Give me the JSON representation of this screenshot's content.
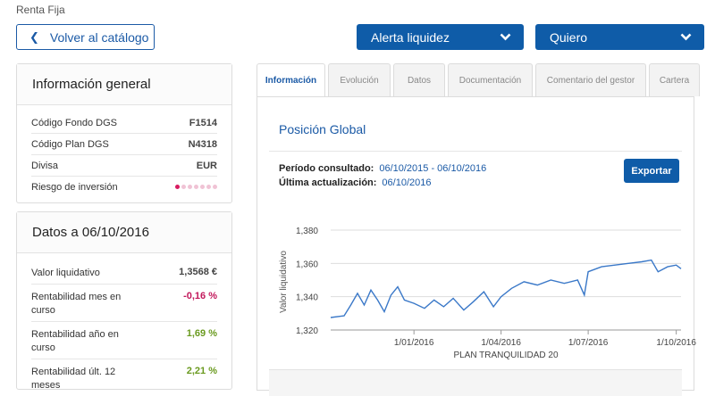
{
  "breadcrumb": "Renta Fija",
  "back_button": {
    "label": "Volver al catálogo"
  },
  "alert_dropdown": {
    "label": "Alerta liquidez"
  },
  "want_dropdown": {
    "label": "Quiero"
  },
  "general_info": {
    "title": "Información general",
    "rows": [
      {
        "label": "Código Fondo DGS",
        "value": "F1514"
      },
      {
        "label": "Código Plan DGS",
        "value": "N4318"
      },
      {
        "label": "Divisa",
        "value": "EUR"
      },
      {
        "label": "Riesgo de inversión",
        "risk_level": 1,
        "risk_max": 7
      }
    ]
  },
  "data_panel": {
    "title": "Datos a 06/10/2016",
    "rows": [
      {
        "label": "Valor liquidativo",
        "value": "1,3568 €"
      },
      {
        "label": "Rentabilidad mes en curso",
        "value": "-0,16 %"
      },
      {
        "label": "Rentabilidad año en curso",
        "value": "1,69 %"
      },
      {
        "label": "Rentabilidad últ. 12 meses",
        "value": "2,21 %"
      }
    ]
  },
  "tabs": [
    {
      "label": "Información",
      "active": true
    },
    {
      "label": "Evolución"
    },
    {
      "label": "Datos"
    },
    {
      "label": "Documentación"
    },
    {
      "label": "Comentario del gestor"
    },
    {
      "label": "Cartera"
    }
  ],
  "content": {
    "section_title": "Posición Global",
    "period_label": "Período consultado:",
    "period_value": "06/10/2015 - 06/10/2016",
    "update_label": "Última actualización:",
    "update_value": "06/10/2016",
    "export_label": "Exportar"
  },
  "colors": {
    "primary": "#0f5ca8",
    "line": "#3a78c8",
    "negative": "#c2185b",
    "positive": "#6a9a1f",
    "risk_active": "#d81b60",
    "risk_inactive": "#f0c3d5"
  },
  "chart_data": {
    "type": "line",
    "title": "",
    "xlabel": "PLAN TRANQUILIDAD 20",
    "ylabel": "Valor liquidativo",
    "ylim": [
      1.32,
      1.38
    ],
    "yticks": [
      {
        "value": 1.32,
        "label": "1,320"
      },
      {
        "value": 1.34,
        "label": "1,340"
      },
      {
        "value": 1.36,
        "label": "1,360"
      },
      {
        "value": 1.38,
        "label": "1,380"
      }
    ],
    "xticks": [
      {
        "date": "2016-01-01",
        "label": "1/01/2016"
      },
      {
        "date": "2016-04-01",
        "label": "1/04/2016"
      },
      {
        "date": "2016-07-01",
        "label": "1/07/2016"
      },
      {
        "date": "2016-10-01",
        "label": "1/10/2016"
      }
    ],
    "xlim": [
      "2015-10-06",
      "2016-10-06"
    ],
    "grid": true,
    "series": [
      {
        "points": [
          [
            "2015-10-06",
            1.3275
          ],
          [
            "2015-10-20",
            1.3285
          ],
          [
            "2015-10-27",
            1.335
          ],
          [
            "2015-11-03",
            1.342
          ],
          [
            "2015-11-10",
            1.335
          ],
          [
            "2015-11-17",
            1.344
          ],
          [
            "2015-11-24",
            1.338
          ],
          [
            "2015-12-01",
            1.331
          ],
          [
            "2015-12-08",
            1.341
          ],
          [
            "2015-12-15",
            1.346
          ],
          [
            "2015-12-22",
            1.338
          ],
          [
            "2016-01-01",
            1.336
          ],
          [
            "2016-01-12",
            1.333
          ],
          [
            "2016-01-22",
            1.338
          ],
          [
            "2016-02-01",
            1.334
          ],
          [
            "2016-02-11",
            1.339
          ],
          [
            "2016-02-22",
            1.332
          ],
          [
            "2016-03-03",
            1.337
          ],
          [
            "2016-03-14",
            1.343
          ],
          [
            "2016-03-24",
            1.334
          ],
          [
            "2016-04-01",
            1.34
          ],
          [
            "2016-04-12",
            1.345
          ],
          [
            "2016-04-25",
            1.349
          ],
          [
            "2016-05-09",
            1.347
          ],
          [
            "2016-05-23",
            1.35
          ],
          [
            "2016-06-06",
            1.348
          ],
          [
            "2016-06-20",
            1.35
          ],
          [
            "2016-06-27",
            1.341
          ],
          [
            "2016-07-01",
            1.355
          ],
          [
            "2016-07-15",
            1.358
          ],
          [
            "2016-07-29",
            1.359
          ],
          [
            "2016-08-12",
            1.36
          ],
          [
            "2016-08-26",
            1.361
          ],
          [
            "2016-09-05",
            1.362
          ],
          [
            "2016-09-12",
            1.355
          ],
          [
            "2016-09-22",
            1.358
          ],
          [
            "2016-10-01",
            1.359
          ],
          [
            "2016-10-06",
            1.3568
          ]
        ]
      }
    ]
  }
}
